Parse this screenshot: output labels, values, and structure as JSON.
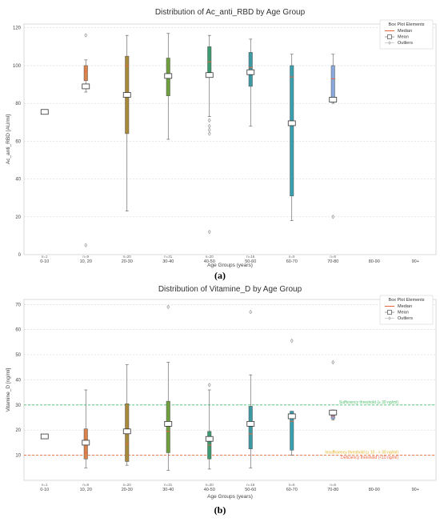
{
  "figure": {
    "panel_labels": [
      "(a)",
      "(b)"
    ]
  },
  "chart_data": [
    {
      "type": "box",
      "title": "Distribution of Ac_anti_RBD by Age Group",
      "xlabel": "Age Groups (years)",
      "ylabel": "Ac_anti_RBD [AU/ml]",
      "ylim": [
        0,
        122
      ],
      "yticks": [
        0,
        20,
        40,
        60,
        80,
        100,
        120
      ],
      "grid": true,
      "categories": [
        "0-10",
        "10, 20",
        "20-30",
        "30-40",
        "40-50",
        "50-60",
        "60-70",
        "70-80",
        "80-90",
        "90+"
      ],
      "counts": [
        "n=1",
        "n=9",
        "n=20",
        "n=31",
        "n=20",
        "n=16",
        "n=5",
        "n=6",
        "",
        ""
      ],
      "box_colors": [
        "#c8c8c8",
        "#d9824b",
        "#a8893b",
        "#6e9e3e",
        "#3d9a6e",
        "#3d9aa2",
        "#3aa0b0",
        "#8aa8dc",
        "",
        ""
      ],
      "boxes": [
        {
          "min": 75,
          "q1": 75,
          "median": 75,
          "q3": 75,
          "max": 75,
          "mean": 75.5,
          "outliers": []
        },
        {
          "min": 86,
          "q1": 92,
          "median": 97,
          "q3": 100,
          "max": 103,
          "mean": 89,
          "outliers": [
            116,
            5
          ]
        },
        {
          "min": 23,
          "q1": 64,
          "median": 100,
          "q3": 105,
          "max": 116,
          "mean": 84.5,
          "outliers": []
        },
        {
          "min": 61,
          "q1": 84,
          "median": 95,
          "q3": 104,
          "max": 117,
          "mean": 94.5,
          "outliers": []
        },
        {
          "min": 73,
          "q1": 95,
          "median": 102,
          "q3": 110,
          "max": 116,
          "mean": 95,
          "outliers": [
            71,
            68,
            66,
            64,
            12
          ]
        },
        {
          "min": 68,
          "q1": 89,
          "median": 99,
          "q3": 107,
          "max": 114,
          "mean": 96.5,
          "outliers": []
        },
        {
          "min": 18,
          "q1": 31,
          "median": 94,
          "q3": 100,
          "max": 106,
          "mean": 69.5,
          "outliers": []
        },
        {
          "min": 80,
          "q1": 81,
          "median": 93,
          "q3": 100,
          "max": 106,
          "mean": 82,
          "outliers": [
            20
          ]
        },
        null,
        null
      ],
      "legend": {
        "title": "Box Plot Elements",
        "items": [
          "Median",
          "Mean",
          "Outliers"
        ],
        "position": "top-right"
      },
      "colors": {
        "median": "#e8613c",
        "mean_edge": "#333333",
        "whisker": "#555555"
      },
      "thresholds": []
    },
    {
      "type": "box",
      "title": "Distribution of Vitamine_D by Age Group",
      "xlabel": "Age Groups (years)",
      "ylabel": "Vitamine_D [ng/ml]",
      "ylim": [
        0,
        72
      ],
      "yticks": [
        10,
        20,
        30,
        40,
        50,
        60,
        70
      ],
      "grid": true,
      "categories": [
        "0-10",
        "10, 20",
        "20-30",
        "30-40",
        "40-50",
        "50-60",
        "60-70",
        "70-80",
        "80-90",
        "90+"
      ],
      "counts": [
        "n=1",
        "n=9",
        "n=20",
        "n=31",
        "n=20",
        "n=16",
        "n=5",
        "n=6",
        "",
        ""
      ],
      "box_colors": [
        "#c8c8c8",
        "#d9824b",
        "#a8893b",
        "#6e9e3e",
        "#3d9a6e",
        "#3d9aa2",
        "#3aa0b0",
        "#8aa8dc",
        "",
        ""
      ],
      "boxes": [
        {
          "min": 17.5,
          "q1": 17.5,
          "median": 17.5,
          "q3": 17.5,
          "max": 17.5,
          "mean": 17.5,
          "outliers": []
        },
        {
          "min": 5,
          "q1": 8.5,
          "median": 11,
          "q3": 20.5,
          "max": 36,
          "mean": 15,
          "outliers": []
        },
        {
          "min": 6,
          "q1": 7.5,
          "median": 14.5,
          "q3": 30.5,
          "max": 46,
          "mean": 19.5,
          "outliers": []
        },
        {
          "min": 4,
          "q1": 11,
          "median": 19.5,
          "q3": 31.5,
          "max": 47,
          "mean": 22.5,
          "outliers": [
            69
          ]
        },
        {
          "min": 4.5,
          "q1": 8.5,
          "median": 14,
          "q3": 19.5,
          "max": 36,
          "mean": 16.5,
          "outliers": [
            38
          ]
        },
        {
          "min": 5,
          "q1": 12.5,
          "median": 18.5,
          "q3": 29.5,
          "max": 42,
          "mean": 22.5,
          "outliers": [
            67
          ]
        },
        {
          "min": 10,
          "q1": 12,
          "median": 23.5,
          "q3": 27.5,
          "max": 27.5,
          "mean": 25.5,
          "outliers": [
            55.5
          ]
        },
        {
          "min": 24,
          "q1": 24.5,
          "median": 25.5,
          "q3": 28,
          "max": 28,
          "mean": 27,
          "outliers": [
            47
          ]
        },
        null,
        null
      ],
      "legend": {
        "title": "Box Plot Elements",
        "items": [
          "Median",
          "Mean",
          "Outliers"
        ],
        "position": "top-right"
      },
      "colors": {
        "median": "#e8613c",
        "mean_edge": "#333333",
        "whisker": "#555555"
      },
      "thresholds": [
        {
          "value": 30,
          "label": "Sufficiency threshold (≥ 30 ng/ml)",
          "color": "#4cbf6b"
        },
        {
          "value": 10,
          "label": "Insufficiency threshold (≥ 10 - < 30 ng/ml)",
          "color": "#e0b020"
        },
        {
          "value": 10,
          "label": "Deficiency threshold (<10 ng/ml)",
          "color": "#e8613c"
        }
      ]
    }
  ]
}
